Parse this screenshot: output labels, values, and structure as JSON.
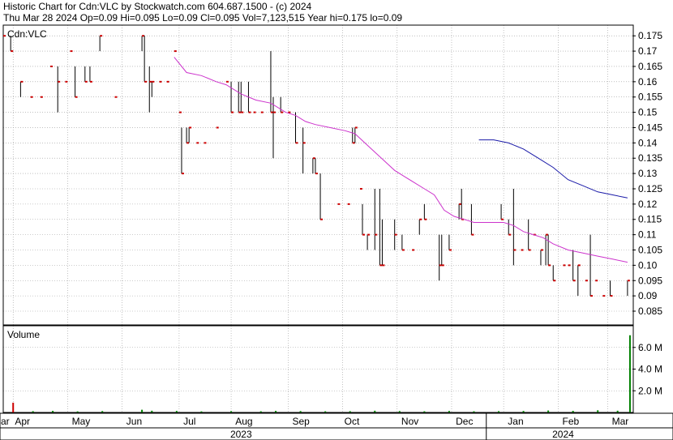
{
  "header": {
    "line1": "Historic Chart for Cdn:VLC by Stockwatch.com 604.687.1500 - (c) 2024",
    "line2": "Thu Mar 28 2024   Op=0.09  Hi=0.095  Lo=0.09  Cl=0.095  Vol=7,123,515  Year hi=0.175  lo=0.09"
  },
  "colors": {
    "price_bar": "#000000",
    "price_tick": "#cc0000",
    "ma_short": "#cc33cc",
    "ma_long": "#1a1aa8",
    "volume_bar": "#008000",
    "volume_spike": "#cc0000",
    "grid": "#9a9a9a",
    "axis": "#000000"
  },
  "chart_data": [
    {
      "type": "line",
      "title": "Cdn:VLC",
      "y_ticks": [
        "0.175",
        "0.17",
        "0.165",
        "0.16",
        "0.155",
        "0.15",
        "0.145",
        "0.14",
        "0.135",
        "0.13",
        "0.125",
        "0.12",
        "0.115",
        "0.11",
        "0.105",
        "0.10",
        "0.095",
        "0.09",
        "0.085"
      ],
      "ylim": [
        0.0805,
        0.1785
      ],
      "x_range": [
        0,
        254
      ],
      "month_labels": [
        {
          "label": "ar",
          "x": 0
        },
        {
          "label": "Apr",
          "x": 6
        },
        {
          "label": "May",
          "x": 29
        },
        {
          "label": "Jun",
          "x": 51
        },
        {
          "label": "Jul",
          "x": 74
        },
        {
          "label": "Aug",
          "x": 95
        },
        {
          "label": "Sep",
          "x": 118
        },
        {
          "label": "Oct",
          "x": 139
        },
        {
          "label": "Nov",
          "x": 162
        },
        {
          "label": "Dec",
          "x": 184
        },
        {
          "label": "Jan",
          "x": 205
        },
        {
          "label": "Feb",
          "x": 227
        },
        {
          "label": "Mar",
          "x": 247
        }
      ],
      "gridlines_x": [
        4,
        26,
        48,
        71,
        92,
        115,
        137,
        159,
        181,
        202,
        224,
        244
      ],
      "year_labels": [
        {
          "label": "2023",
          "x": 96
        },
        {
          "label": "2024",
          "x": 226
        }
      ],
      "year_divider_x": 195,
      "series_ohlc": [
        {
          "x": 0,
          "h": 0.175,
          "l": 0.17,
          "c": 0.175
        },
        {
          "x": 3,
          "h": 0.175,
          "l": 0.17,
          "c": 0.17
        },
        {
          "x": 7,
          "h": 0.16,
          "l": 0.155,
          "c": 0.16
        },
        {
          "x": 11,
          "h": 0.155,
          "l": 0.155,
          "c": 0.155
        },
        {
          "x": 15,
          "h": 0.155,
          "l": 0.155,
          "c": 0.155
        },
        {
          "x": 19,
          "h": 0.165,
          "l": 0.165,
          "c": 0.165
        },
        {
          "x": 22,
          "h": 0.165,
          "l": 0.15,
          "c": 0.16
        },
        {
          "x": 25,
          "h": 0.165,
          "l": 0.165,
          "c": 0.16
        },
        {
          "x": 27,
          "h": 0.17,
          "l": 0.17,
          "c": 0.17
        },
        {
          "x": 29,
          "h": 0.165,
          "l": 0.155,
          "c": 0.155
        },
        {
          "x": 33,
          "h": 0.165,
          "l": 0.16,
          "c": 0.16
        },
        {
          "x": 35,
          "h": 0.165,
          "l": 0.16,
          "c": 0.16
        },
        {
          "x": 39,
          "h": 0.175,
          "l": 0.17,
          "c": 0.175
        },
        {
          "x": 45,
          "h": 0.155,
          "l": 0.155,
          "c": 0.155
        },
        {
          "x": 56,
          "h": 0.175,
          "l": 0.17,
          "c": 0.175
        },
        {
          "x": 57,
          "h": 0.175,
          "l": 0.16,
          "c": 0.16
        },
        {
          "x": 59,
          "h": 0.165,
          "l": 0.15,
          "c": 0.16
        },
        {
          "x": 60,
          "h": 0.16,
          "l": 0.155,
          "c": 0.16
        },
        {
          "x": 63,
          "h": 0.16,
          "l": 0.16,
          "c": 0.16
        },
        {
          "x": 66,
          "h": 0.16,
          "l": 0.16,
          "c": 0.16
        },
        {
          "x": 69,
          "h": 0.17,
          "l": 0.17,
          "c": 0.17
        },
        {
          "x": 71,
          "h": 0.15,
          "l": 0.15,
          "c": 0.15
        },
        {
          "x": 72,
          "h": 0.145,
          "l": 0.13,
          "c": 0.13
        },
        {
          "x": 74,
          "h": 0.145,
          "l": 0.14,
          "c": 0.14
        },
        {
          "x": 75,
          "h": 0.145,
          "l": 0.14,
          "c": 0.145
        },
        {
          "x": 78,
          "h": 0.14,
          "l": 0.14,
          "c": 0.14
        },
        {
          "x": 81,
          "h": 0.14,
          "l": 0.14,
          "c": 0.14
        },
        {
          "x": 86,
          "h": 0.145,
          "l": 0.145,
          "c": 0.145
        },
        {
          "x": 90,
          "h": 0.16,
          "l": 0.16,
          "c": 0.16
        },
        {
          "x": 92,
          "h": 0.16,
          "l": 0.15,
          "c": 0.15
        },
        {
          "x": 95,
          "h": 0.16,
          "l": 0.15,
          "c": 0.15
        },
        {
          "x": 96,
          "h": 0.16,
          "l": 0.15,
          "c": 0.15
        },
        {
          "x": 99,
          "h": 0.16,
          "l": 0.15,
          "c": 0.15
        },
        {
          "x": 101,
          "h": 0.15,
          "l": 0.15,
          "c": 0.15
        },
        {
          "x": 104,
          "h": 0.15,
          "l": 0.15,
          "c": 0.15
        },
        {
          "x": 108,
          "h": 0.17,
          "l": 0.15,
          "c": 0.15
        },
        {
          "x": 109,
          "h": 0.155,
          "l": 0.135,
          "c": 0.15
        },
        {
          "x": 112,
          "h": 0.155,
          "l": 0.15,
          "c": 0.15
        },
        {
          "x": 115,
          "h": 0.15,
          "l": 0.15,
          "c": 0.15
        },
        {
          "x": 118,
          "h": 0.15,
          "l": 0.14,
          "c": 0.14
        },
        {
          "x": 121,
          "h": 0.145,
          "l": 0.13,
          "c": 0.14
        },
        {
          "x": 125,
          "h": 0.135,
          "l": 0.13,
          "c": 0.135
        },
        {
          "x": 126,
          "h": 0.135,
          "l": 0.13,
          "c": 0.13
        },
        {
          "x": 128,
          "h": 0.13,
          "l": 0.115,
          "c": 0.115
        },
        {
          "x": 135,
          "h": 0.12,
          "l": 0.12,
          "c": 0.12
        },
        {
          "x": 139,
          "h": 0.12,
          "l": 0.12,
          "c": 0.12
        },
        {
          "x": 141,
          "h": 0.145,
          "l": 0.14,
          "c": 0.14
        },
        {
          "x": 142,
          "h": 0.145,
          "l": 0.14,
          "c": 0.145
        },
        {
          "x": 144,
          "h": 0.125,
          "l": 0.125,
          "c": 0.125
        },
        {
          "x": 145,
          "h": 0.12,
          "l": 0.11,
          "c": 0.11
        },
        {
          "x": 147,
          "h": 0.11,
          "l": 0.105,
          "c": 0.11
        },
        {
          "x": 150,
          "h": 0.125,
          "l": 0.105,
          "c": 0.11
        },
        {
          "x": 152,
          "h": 0.125,
          "l": 0.1,
          "c": 0.1
        },
        {
          "x": 153,
          "h": 0.115,
          "l": 0.1,
          "c": 0.1
        },
        {
          "x": 158,
          "h": 0.115,
          "l": 0.105,
          "c": 0.11
        },
        {
          "x": 161,
          "h": 0.11,
          "l": 0.105,
          "c": 0.105
        },
        {
          "x": 165,
          "h": 0.105,
          "l": 0.105,
          "c": 0.105
        },
        {
          "x": 168,
          "h": 0.115,
          "l": 0.11,
          "c": 0.115
        },
        {
          "x": 170,
          "h": 0.12,
          "l": 0.115,
          "c": 0.115
        },
        {
          "x": 176,
          "h": 0.11,
          "l": 0.095,
          "c": 0.1
        },
        {
          "x": 177,
          "h": 0.11,
          "l": 0.1,
          "c": 0.1
        },
        {
          "x": 180,
          "h": 0.11,
          "l": 0.105,
          "c": 0.105
        },
        {
          "x": 184,
          "h": 0.12,
          "l": 0.115,
          "c": 0.12
        },
        {
          "x": 185,
          "h": 0.125,
          "l": 0.115,
          "c": 0.115
        },
        {
          "x": 189,
          "h": 0.12,
          "l": 0.11,
          "c": 0.11
        },
        {
          "x": 201,
          "h": 0.12,
          "l": 0.115,
          "c": 0.115
        },
        {
          "x": 204,
          "h": 0.115,
          "l": 0.11,
          "c": 0.11
        },
        {
          "x": 206,
          "h": 0.125,
          "l": 0.1,
          "c": 0.105
        },
        {
          "x": 209,
          "h": 0.105,
          "l": 0.105,
          "c": 0.105
        },
        {
          "x": 212,
          "h": 0.115,
          "l": 0.105,
          "c": 0.105
        },
        {
          "x": 214,
          "h": 0.11,
          "l": 0.11,
          "c": 0.11
        },
        {
          "x": 217,
          "h": 0.105,
          "l": 0.1,
          "c": 0.105
        },
        {
          "x": 219,
          "h": 0.11,
          "l": 0.1,
          "c": 0.11
        },
        {
          "x": 220,
          "h": 0.11,
          "l": 0.1,
          "c": 0.1
        },
        {
          "x": 222,
          "h": 0.1,
          "l": 0.095,
          "c": 0.095
        },
        {
          "x": 226,
          "h": 0.1,
          "l": 0.1,
          "c": 0.1
        },
        {
          "x": 228,
          "h": 0.1,
          "l": 0.1,
          "c": 0.1
        },
        {
          "x": 230,
          "h": 0.105,
          "l": 0.095,
          "c": 0.095
        },
        {
          "x": 232,
          "h": 0.1,
          "l": 0.09,
          "c": 0.1
        },
        {
          "x": 235,
          "h": 0.095,
          "l": 0.095,
          "c": 0.095
        },
        {
          "x": 237,
          "h": 0.11,
          "l": 0.09,
          "c": 0.09
        },
        {
          "x": 239,
          "h": 0.095,
          "l": 0.095,
          "c": 0.095
        },
        {
          "x": 242,
          "h": 0.09,
          "l": 0.09,
          "c": 0.09
        },
        {
          "x": 245,
          "h": 0.095,
          "l": 0.09,
          "c": 0.09
        },
        {
          "x": 252,
          "h": 0.095,
          "l": 0.09,
          "c": 0.095
        }
      ],
      "series_ma_short": [
        {
          "x": 69,
          "y": 0.168
        },
        {
          "x": 74,
          "y": 0.163
        },
        {
          "x": 80,
          "y": 0.162
        },
        {
          "x": 86,
          "y": 0.16
        },
        {
          "x": 90,
          "y": 0.159
        },
        {
          "x": 96,
          "y": 0.156
        },
        {
          "x": 102,
          "y": 0.154
        },
        {
          "x": 108,
          "y": 0.153
        },
        {
          "x": 114,
          "y": 0.15
        },
        {
          "x": 118,
          "y": 0.149
        },
        {
          "x": 122,
          "y": 0.147
        },
        {
          "x": 126,
          "y": 0.146
        },
        {
          "x": 132,
          "y": 0.145
        },
        {
          "x": 138,
          "y": 0.144
        },
        {
          "x": 142,
          "y": 0.143
        },
        {
          "x": 146,
          "y": 0.14
        },
        {
          "x": 150,
          "y": 0.137
        },
        {
          "x": 154,
          "y": 0.134
        },
        {
          "x": 158,
          "y": 0.131
        },
        {
          "x": 162,
          "y": 0.129
        },
        {
          "x": 166,
          "y": 0.127
        },
        {
          "x": 170,
          "y": 0.125
        },
        {
          "x": 174,
          "y": 0.123
        },
        {
          "x": 178,
          "y": 0.118
        },
        {
          "x": 182,
          "y": 0.116
        },
        {
          "x": 186,
          "y": 0.115
        },
        {
          "x": 190,
          "y": 0.114
        },
        {
          "x": 196,
          "y": 0.114
        },
        {
          "x": 202,
          "y": 0.114
        },
        {
          "x": 206,
          "y": 0.113
        },
        {
          "x": 210,
          "y": 0.111
        },
        {
          "x": 214,
          "y": 0.11
        },
        {
          "x": 218,
          "y": 0.109
        },
        {
          "x": 222,
          "y": 0.107
        },
        {
          "x": 228,
          "y": 0.105
        },
        {
          "x": 234,
          "y": 0.104
        },
        {
          "x": 240,
          "y": 0.103
        },
        {
          "x": 246,
          "y": 0.102
        },
        {
          "x": 252,
          "y": 0.101
        }
      ],
      "series_ma_long": [
        {
          "x": 192,
          "y": 0.141
        },
        {
          "x": 198,
          "y": 0.141
        },
        {
          "x": 204,
          "y": 0.14
        },
        {
          "x": 210,
          "y": 0.138
        },
        {
          "x": 216,
          "y": 0.135
        },
        {
          "x": 222,
          "y": 0.132
        },
        {
          "x": 228,
          "y": 0.128
        },
        {
          "x": 234,
          "y": 0.126
        },
        {
          "x": 240,
          "y": 0.124
        },
        {
          "x": 246,
          "y": 0.123
        },
        {
          "x": 252,
          "y": 0.122
        }
      ]
    },
    {
      "type": "bar",
      "title": "Volume",
      "y_ticks": [
        {
          "label": "2.0 M",
          "value": 2000000
        },
        {
          "label": "4.0 M",
          "value": 4000000
        },
        {
          "label": "6.0 M",
          "value": 6000000
        }
      ],
      "ylim": [
        0,
        8000000
      ],
      "bars": [
        {
          "x": 4,
          "v": 900000
        },
        {
          "x": 12,
          "v": 120000
        },
        {
          "x": 20,
          "v": 150000
        },
        {
          "x": 30,
          "v": 100000
        },
        {
          "x": 40,
          "v": 130000
        },
        {
          "x": 56,
          "v": 250000
        },
        {
          "x": 60,
          "v": 160000
        },
        {
          "x": 70,
          "v": 140000
        },
        {
          "x": 80,
          "v": 100000
        },
        {
          "x": 92,
          "v": 120000
        },
        {
          "x": 104,
          "v": 110000
        },
        {
          "x": 110,
          "v": 150000
        },
        {
          "x": 120,
          "v": 130000
        },
        {
          "x": 130,
          "v": 110000
        },
        {
          "x": 140,
          "v": 120000
        },
        {
          "x": 150,
          "v": 160000
        },
        {
          "x": 160,
          "v": 130000
        },
        {
          "x": 170,
          "v": 110000
        },
        {
          "x": 180,
          "v": 140000
        },
        {
          "x": 190,
          "v": 110000
        },
        {
          "x": 200,
          "v": 120000
        },
        {
          "x": 210,
          "v": 140000
        },
        {
          "x": 220,
          "v": 180000
        },
        {
          "x": 230,
          "v": 150000
        },
        {
          "x": 240,
          "v": 200000
        },
        {
          "x": 248,
          "v": 160000
        },
        {
          "x": 253,
          "v": 7123515
        }
      ]
    }
  ]
}
